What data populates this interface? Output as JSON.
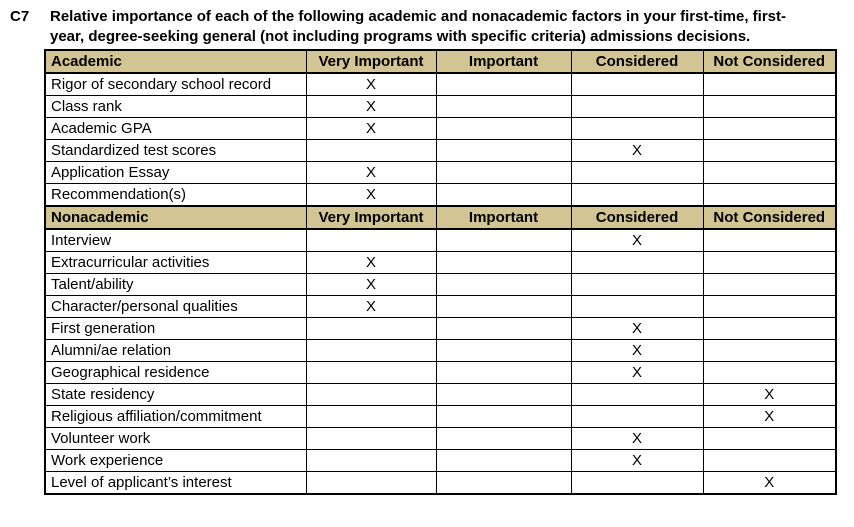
{
  "question": {
    "id": "C7",
    "title": "Relative importance of each of the following academic and nonacademic factors in your first-time, first-year, degree-seeking general (not including programs with specific criteria) admissions decisions."
  },
  "table": {
    "columns": [
      "Very Important",
      "Important",
      "Considered",
      "Not Considered"
    ],
    "mark": "X",
    "colors": {
      "header_bg": "#d3c493",
      "border": "#000000",
      "text": "#000000"
    },
    "sections": [
      {
        "header": "Academic",
        "rows": [
          {
            "factor": "Rigor of secondary school record",
            "rating": "Very Important"
          },
          {
            "factor": "Class rank",
            "rating": "Very Important"
          },
          {
            "factor": "Academic GPA",
            "rating": "Very Important"
          },
          {
            "factor": "Standardized test scores",
            "rating": "Considered"
          },
          {
            "factor": "Application Essay",
            "rating": "Very Important"
          },
          {
            "factor": "Recommendation(s)",
            "rating": "Very Important"
          }
        ]
      },
      {
        "header": "Nonacademic",
        "rows": [
          {
            "factor": "Interview",
            "rating": "Considered"
          },
          {
            "factor": "Extracurricular activities",
            "rating": "Very Important"
          },
          {
            "factor": "Talent/ability",
            "rating": "Very Important"
          },
          {
            "factor": "Character/personal qualities",
            "rating": "Very Important"
          },
          {
            "factor": "First generation",
            "rating": "Considered"
          },
          {
            "factor": "Alumni/ae relation",
            "rating": "Considered"
          },
          {
            "factor": "Geographical residence",
            "rating": "Considered"
          },
          {
            "factor": "State residency",
            "rating": "Not Considered"
          },
          {
            "factor": "Religious affiliation/commitment",
            "rating": "Not Considered"
          },
          {
            "factor": "Volunteer work",
            "rating": "Considered"
          },
          {
            "factor": "Work experience",
            "rating": "Considered"
          },
          {
            "factor": "Level of applicant’s interest",
            "rating": "Not Considered"
          }
        ]
      }
    ]
  }
}
